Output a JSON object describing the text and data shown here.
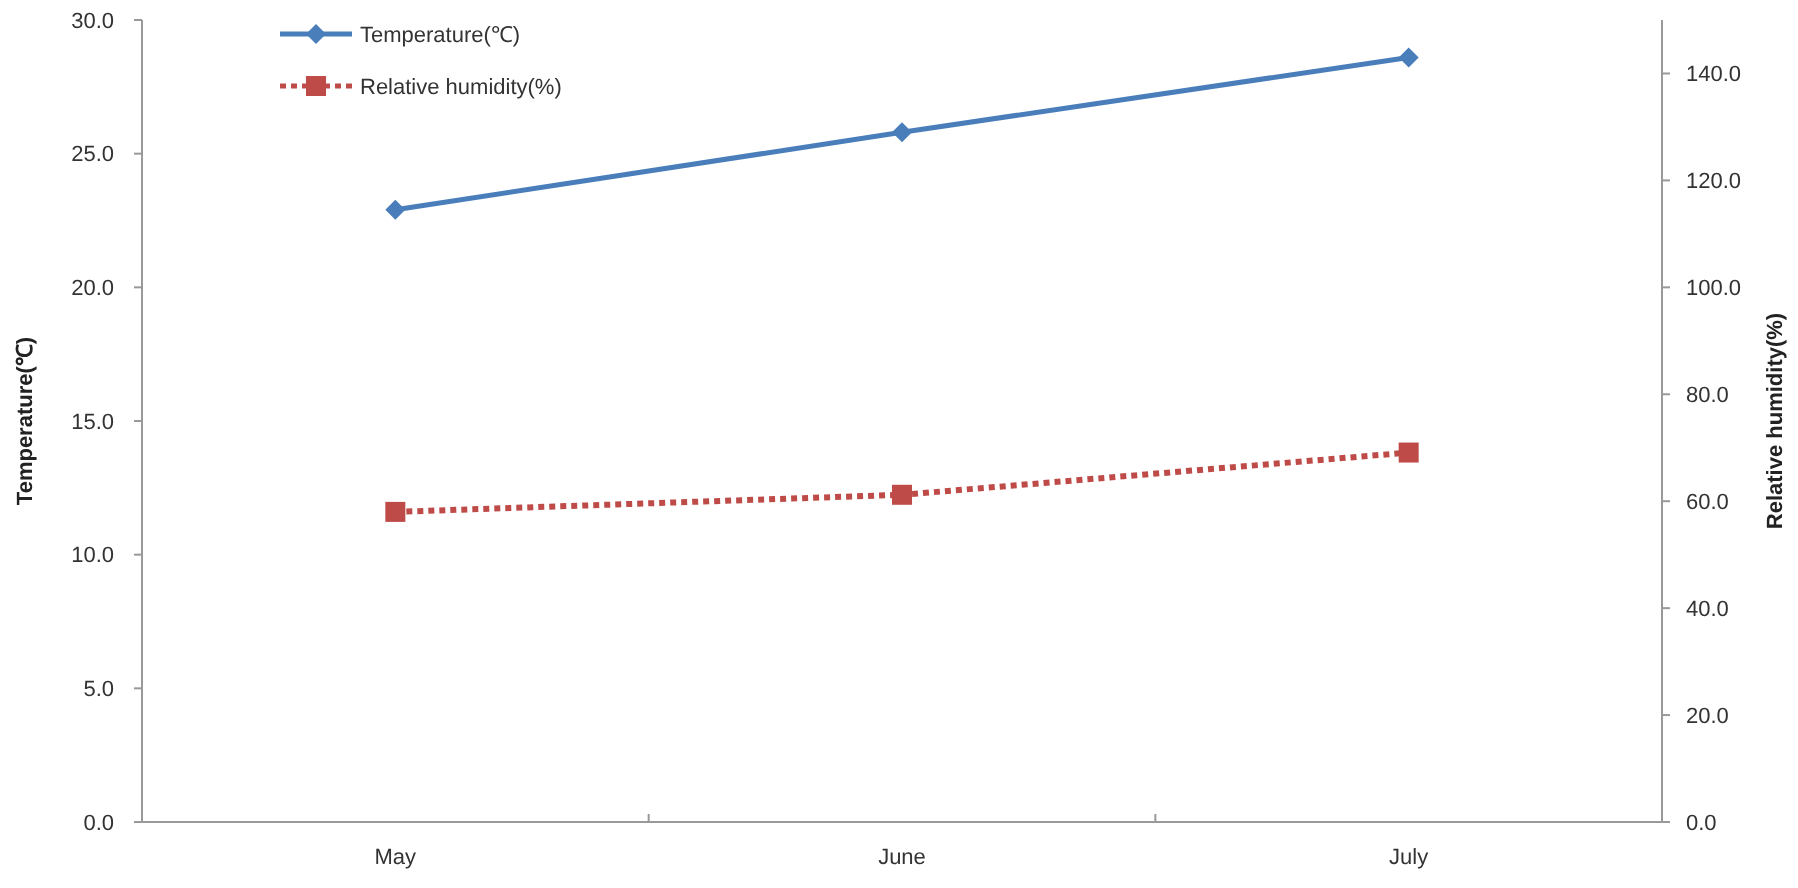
{
  "chart_data": {
    "type": "line",
    "categories": [
      "May",
      "June",
      "July"
    ],
    "ylabel": "Temperature(℃)",
    "y2label": "Relative humidity(%)",
    "ylim": [
      0,
      30
    ],
    "yticks": [
      {
        "value": 0,
        "label": "0.0"
      },
      {
        "value": 5,
        "label": "5.0"
      },
      {
        "value": 10,
        "label": "10.0"
      },
      {
        "value": 15,
        "label": "15.0"
      },
      {
        "value": 20,
        "label": "20.0"
      },
      {
        "value": 25,
        "label": "25.0"
      },
      {
        "value": 30,
        "label": "30.0"
      }
    ],
    "y2lim": [
      0,
      150
    ],
    "y2ticks": [
      {
        "value": 0,
        "label": "0.0"
      },
      {
        "value": 20,
        "label": "20.0"
      },
      {
        "value": 40,
        "label": "40.0"
      },
      {
        "value": 60,
        "label": "60.0"
      },
      {
        "value": 80,
        "label": "80.0"
      },
      {
        "value": 100,
        "label": "100.0"
      },
      {
        "value": 120,
        "label": "120.0"
      },
      {
        "value": 140,
        "label": "140.0"
      }
    ],
    "legend": "top left",
    "grid": false,
    "series": [
      {
        "name": "Temperature(℃)",
        "color": "#4a7ebb",
        "values": [
          22.9,
          25.8,
          28.6
        ],
        "marker": "diamond",
        "line_style": "solid"
      },
      {
        "name": "Relative humidity(%)",
        "color": "#be4b48",
        "values": [
          58,
          61.2,
          69.1
        ],
        "axis": "y2",
        "marker": "square",
        "line_style": "dotted"
      }
    ]
  }
}
